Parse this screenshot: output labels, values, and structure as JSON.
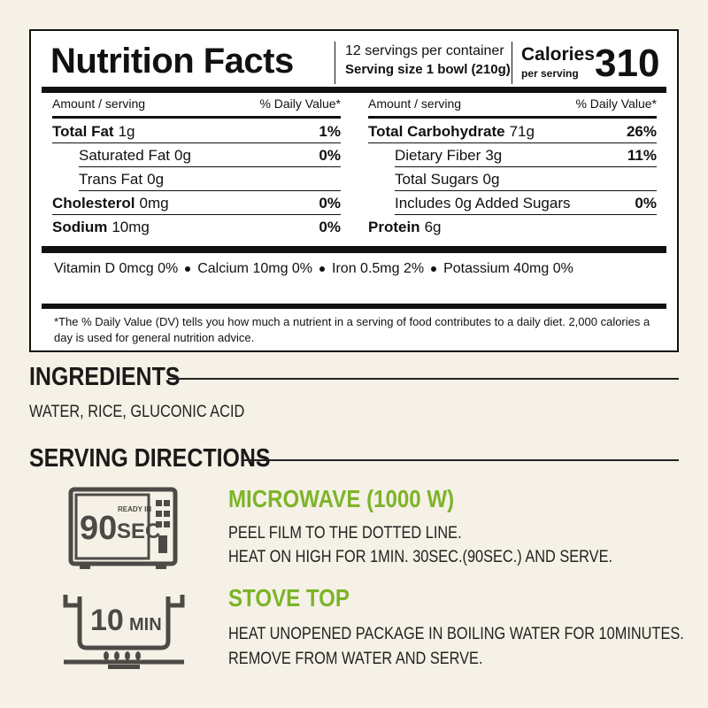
{
  "nutrition_facts": {
    "title": "Nutrition Facts",
    "servings_per_container": "12 servings per container",
    "serving_size": {
      "label": "Serving size",
      "value": "1 bowl (210g)"
    },
    "calories": {
      "label": "Calories",
      "sublabel": "per serving",
      "value": "310"
    },
    "columns": [
      {
        "amount_header": "Amount / serving",
        "dv_header": "% Daily Value*",
        "rows": [
          {
            "name": "Total Fat",
            "amount": "1g",
            "dv": "1%",
            "subrows": [
              {
                "name": "Saturated Fat",
                "amount": "0g",
                "dv": "0%"
              },
              {
                "name": "Trans Fat",
                "amount": "0g"
              }
            ]
          },
          {
            "name": "Cholesterol",
            "amount": "0mg",
            "dv": "0%"
          },
          {
            "name": "Sodium",
            "amount": "10mg",
            "dv": "0%"
          }
        ]
      },
      {
        "amount_header": "Amount / serving",
        "dv_header": "% Daily Value*",
        "rows": [
          {
            "name": "Total Carbohydrate",
            "amount": "71g",
            "dv": "26%",
            "subrows": [
              {
                "name": "Dietary Fiber",
                "amount": "3g",
                "dv": "11%"
              },
              {
                "name": "Total Sugars",
                "amount": "0g"
              },
              {
                "name": "Includes 0g Added Sugars",
                "dv": "0%"
              }
            ]
          },
          {
            "name": "Protein",
            "amount": "6g"
          }
        ]
      }
    ],
    "micronutrients": [
      "Vitamin D 0mcg 0%",
      "Calcium 10mg 0%",
      "Iron 0.5mg 2%",
      "Potassium 40mg 0%"
    ],
    "footnote": "*The % Daily Value (DV) tells you how much a nutrient in a serving of food contributes to a daily diet. 2,000 calories a day is used for general nutrition advice."
  },
  "ingredients": {
    "heading": "INGREDIENTS",
    "text": "WATER, RICE, GLUCONIC ACID"
  },
  "serving_directions": {
    "heading": "SERVING DIRECTIONS",
    "methods": [
      {
        "icon": {
          "value": "90",
          "label_top": "READY IN",
          "unit": "SEC"
        },
        "title": "MICROWAVE (1000 W)",
        "lines": [
          "PEEL FILM TO THE DOTTED LINE.",
          "HEAT ON HIGH FOR 1MIN. 30SEC.(90SEC.) AND SERVE."
        ]
      },
      {
        "icon": {
          "value": "10",
          "unit": "MIN"
        },
        "title": "STOVE TOP",
        "lines": [
          "HEAT UNOPENED PACKAGE IN BOILING WATER FOR 10MINUTES.",
          "REMOVE FROM WATER AND SERVE."
        ]
      }
    ]
  }
}
